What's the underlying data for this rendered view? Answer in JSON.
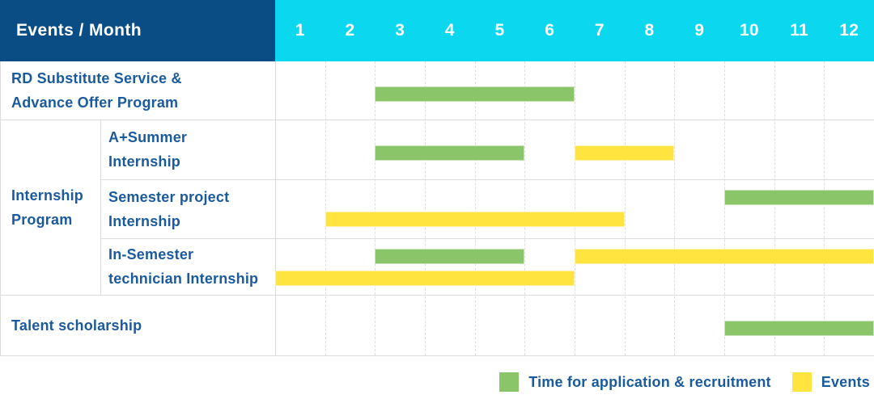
{
  "colors": {
    "navy": "#0a4d85",
    "cyan": "#0bd7ee",
    "green": "#8bc56a",
    "yellow": "#ffe33e",
    "label_blue": "#1a5a9e",
    "border": "#dcdcdc"
  },
  "header": {
    "title": "Events / Month",
    "months": [
      "1",
      "2",
      "3",
      "4",
      "5",
      "6",
      "7",
      "8",
      "9",
      "10",
      "11",
      "12"
    ]
  },
  "group_cell": {
    "label_lines": [
      "Internship",
      "Program"
    ]
  },
  "legend": {
    "items": [
      {
        "label": "Time for application & recruitment",
        "color": "green"
      },
      {
        "label": "Events",
        "color": "yellow"
      }
    ]
  },
  "chart_data": {
    "type": "bar",
    "variant": "gantt",
    "title": "Events / Month",
    "x_axis": {
      "label": "Month",
      "ticks": [
        1,
        2,
        3,
        4,
        5,
        6,
        7,
        8,
        9,
        10,
        11,
        12
      ],
      "range": [
        1,
        12
      ]
    },
    "legend_entries": [
      "Time for application & recruitment",
      "Events"
    ],
    "series_styles": {
      "application": {
        "name": "Time for application & recruitment",
        "color": "green"
      },
      "events": {
        "name": "Events",
        "color": "yellow"
      }
    },
    "rows": [
      {
        "group": "",
        "label": "RD Substitute Service & Advance Offer Program",
        "label_lines": [
          "RD Substitute Service &",
          "Advance Offer Program"
        ],
        "bars": [
          {
            "series": "application",
            "lane": "middle",
            "start_month": 3,
            "end_month": 6
          }
        ]
      },
      {
        "group": "Internship Program",
        "label": "A+Summer Internship",
        "label_lines": [
          "A+Summer",
          "Internship"
        ],
        "bars": [
          {
            "series": "application",
            "lane": "middle",
            "start_month": 3,
            "end_month": 5
          },
          {
            "series": "events",
            "lane": "middle",
            "start_month": 7,
            "end_month": 8
          }
        ]
      },
      {
        "group": "Internship Program",
        "label": "Semester project Internship",
        "label_lines": [
          "Semester project",
          "Internship"
        ],
        "bars": [
          {
            "series": "application",
            "lane": "upper",
            "start_month": 10,
            "end_month": 12
          },
          {
            "series": "events",
            "lane": "lower",
            "start_month": 2,
            "end_month": 7
          }
        ]
      },
      {
        "group": "Internship Program",
        "label": "In-Semester technician Internship",
        "label_lines": [
          "In-Semester",
          "technician Internship"
        ],
        "bars": [
          {
            "series": "application",
            "lane": "upper",
            "start_month": 3,
            "end_month": 5
          },
          {
            "series": "events",
            "lane": "upper",
            "start_month": 7,
            "end_month": 12
          },
          {
            "series": "events",
            "lane": "lower",
            "start_month": 1,
            "end_month": 6
          }
        ]
      },
      {
        "group": "",
        "label": "Talent scholarship",
        "label_lines": [
          "Talent scholarship"
        ],
        "bars": [
          {
            "series": "application",
            "lane": "middle",
            "start_month": 10,
            "end_month": 12
          }
        ]
      }
    ]
  }
}
